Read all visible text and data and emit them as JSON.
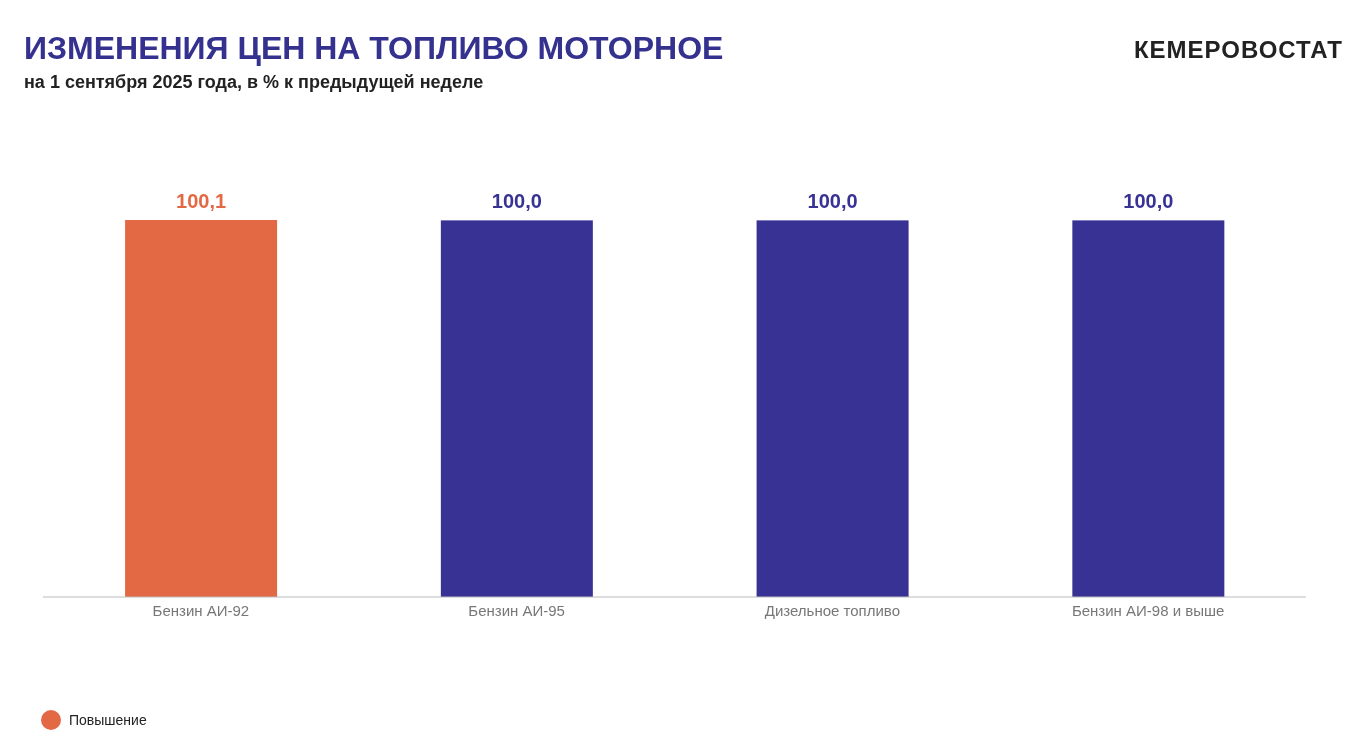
{
  "chart_data": {
    "type": "bar",
    "title": "ИЗМЕНЕНИЯ ЦЕН НА ТОПЛИВО МОТОРНОЕ",
    "subtitle": "на 1 сентября 2025 года, в % к предыдущей неделе",
    "annotations": [
      "КЕМЕРОВОСТАТ"
    ],
    "categories": [
      "Бензин АИ-92",
      "Бензин АИ-95",
      "Дизельное топливо",
      "Бензин АИ-98 и выше"
    ],
    "stacked": true,
    "series": [
      {
        "name": "Повышение",
        "color": "#e36945",
        "values": [
          100.1,
          null,
          null,
          null
        ],
        "value_labels": [
          "100,1",
          null,
          null,
          null
        ]
      },
      {
        "color": "#373294",
        "values": [
          null,
          100.0,
          100.0,
          100.0
        ],
        "value_labels": [
          null,
          "100,0",
          "100,0",
          "100,0"
        ]
      }
    ],
    "legend": "bottom left"
  }
}
